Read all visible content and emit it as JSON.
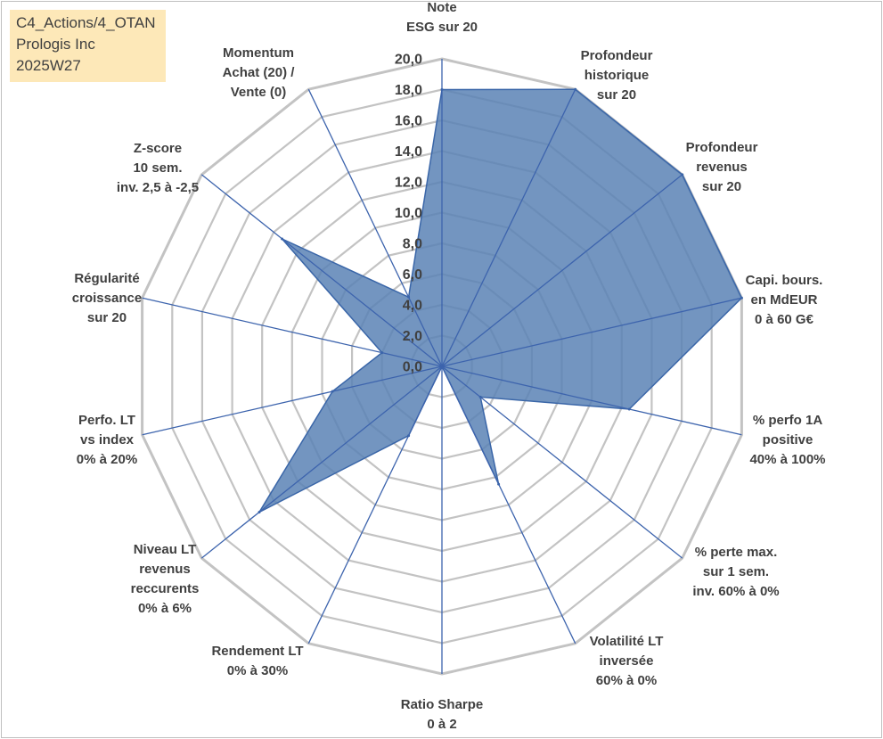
{
  "info_box": {
    "line1": "C4_Actions/4_OTAN",
    "line2": "Prologis Inc",
    "line3": "2025W27"
  },
  "colors": {
    "fill": "#5b83b5",
    "stroke": "#3a66a8",
    "spoke": "#3d64ad",
    "grid": "#c3c3c3",
    "box": "#fde8b8"
  },
  "chart_data": {
    "type": "radar",
    "title": "",
    "rmin": 0,
    "rmax": 20,
    "tick_step": 2,
    "ticks": [
      "0,0",
      "2,0",
      "4,0",
      "6,0",
      "8,0",
      "10,0",
      "12,0",
      "14,0",
      "16,0",
      "18,0",
      "20,0"
    ],
    "axes": [
      [
        "Note",
        "ESG sur 20"
      ],
      [
        "Profondeur",
        "historique",
        "sur 20"
      ],
      [
        "Profondeur",
        "revenus",
        "sur 20"
      ],
      [
        "Capi. bours.",
        "en MdEUR",
        "0 à 60 G€"
      ],
      [
        "% perfo 1A",
        "positive",
        "40% à 100%"
      ],
      [
        "% perte max.",
        "sur 1 sem.",
        "inv. 60% à 0%"
      ],
      [
        "Volatilité LT",
        "inversée",
        "60% à 0%"
      ],
      [
        "Ratio Sharpe",
        "0 à 2"
      ],
      [
        "Rendement LT",
        "0% à 30%"
      ],
      [
        "Niveau LT",
        "revenus",
        "reccurents",
        "0% à 6%"
      ],
      [
        "Perfo. LT",
        "vs index",
        "0% à 20%"
      ],
      [
        "Régularité",
        "croissance",
        "sur 20"
      ],
      [
        "Z-score",
        "10 sem.",
        "inv. 2,5 à -2,5"
      ],
      [
        "Momentum",
        "Achat (20) /",
        "Vente (0)"
      ]
    ],
    "series": [
      {
        "values": [
          18,
          20,
          20,
          20,
          12.5,
          3.2,
          8.5,
          0,
          5,
          15.2,
          7.3,
          4,
          13.3,
          5
        ]
      }
    ]
  }
}
